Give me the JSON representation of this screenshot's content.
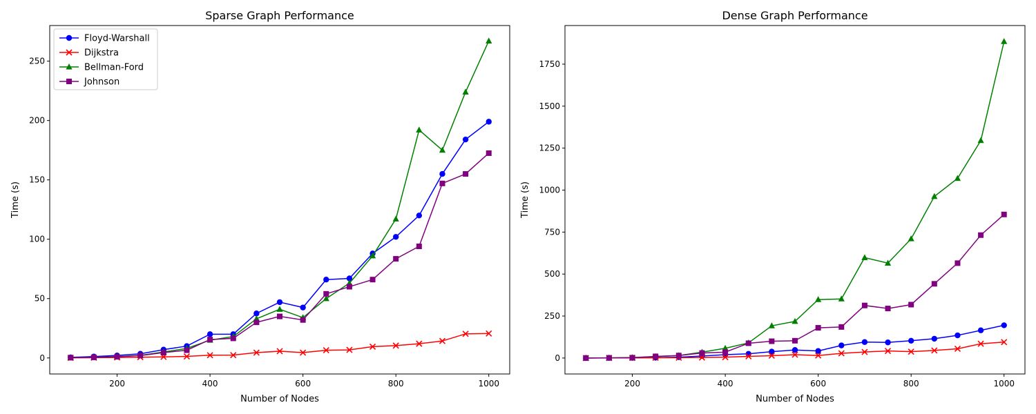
{
  "chart_data": [
    {
      "type": "line",
      "title": "Sparse Graph Performance",
      "xlabel": "Number of Nodes",
      "ylabel": "Time (s)",
      "xlim": [
        55,
        1045
      ],
      "ylim": [
        -13.5,
        280
      ],
      "xticks": [
        200,
        400,
        600,
        800,
        1000
      ],
      "yticks": [
        0,
        50,
        100,
        150,
        200,
        250
      ],
      "grid": false,
      "legend": "top-left",
      "x": [
        100,
        150,
        200,
        250,
        300,
        350,
        400,
        450,
        500,
        550,
        600,
        650,
        700,
        750,
        800,
        850,
        900,
        950,
        1000
      ],
      "series": [
        {
          "name": "Floyd-Warshall",
          "color": "#0000ff",
          "marker": "circle",
          "values": [
            0.5,
            1.2,
            2.1,
            3.5,
            7,
            10,
            20,
            20,
            37.5,
            47,
            42.5,
            66,
            67,
            88,
            102,
            120,
            155,
            184,
            199
          ]
        },
        {
          "name": "Dijkstra",
          "color": "#ff0000",
          "marker": "x",
          "values": [
            0.1,
            0.2,
            0.4,
            0.6,
            0.9,
            1.3,
            2.3,
            2.4,
            4.5,
            5.7,
            4.5,
            6.5,
            6.8,
            9.5,
            10.4,
            12,
            14.3,
            20.3,
            20.6
          ]
        },
        {
          "name": "Bellman-Ford",
          "color": "#008000",
          "marker": "triangle",
          "values": [
            0.3,
            0.6,
            1.2,
            2.2,
            5,
            8,
            15,
            18,
            33,
            41,
            34,
            50,
            63,
            86,
            117,
            192,
            175,
            224,
            267
          ]
        },
        {
          "name": "Johnson",
          "color": "#800080",
          "marker": "square",
          "values": [
            0.2,
            0.5,
            1,
            2,
            4.5,
            6.5,
            15.5,
            16.5,
            30,
            35,
            32,
            54,
            60,
            66,
            83.5,
            94,
            147,
            155,
            172.5
          ]
        }
      ]
    },
    {
      "type": "line",
      "title": "Dense Graph Performance",
      "xlabel": "Number of Nodes",
      "ylabel": "Time (s)",
      "xlim": [
        55,
        1045
      ],
      "ylim": [
        -95,
        1980
      ],
      "xticks": [
        200,
        400,
        600,
        800,
        1000
      ],
      "yticks": [
        0,
        250,
        500,
        750,
        1000,
        1250,
        1500,
        1750
      ],
      "grid": false,
      "legend": "none",
      "x": [
        100,
        150,
        200,
        250,
        300,
        350,
        400,
        450,
        500,
        550,
        600,
        650,
        700,
        750,
        800,
        850,
        900,
        950,
        1000
      ],
      "series": [
        {
          "name": "Floyd-Warshall",
          "color": "#0000ff",
          "marker": "circle",
          "values": [
            0,
            0.5,
            1,
            2,
            5,
            12,
            20,
            25,
            38,
            48,
            42,
            75,
            95,
            93,
            103,
            115,
            135,
            165,
            195
          ]
        },
        {
          "name": "Dijkstra",
          "color": "#ff0000",
          "marker": "x",
          "values": [
            0,
            0.5,
            1,
            1.5,
            2,
            3,
            5,
            10,
            14,
            20,
            15,
            28,
            36,
            42,
            38,
            45,
            55,
            85,
            95
          ]
        },
        {
          "name": "Bellman-Ford",
          "color": "#008000",
          "marker": "triangle",
          "values": [
            0,
            1,
            3,
            8,
            15,
            35,
            58,
            90,
            192,
            218,
            348,
            352,
            598,
            565,
            710,
            962,
            1070,
            1295,
            1885
          ]
        },
        {
          "name": "Johnson",
          "color": "#800080",
          "marker": "square",
          "values": [
            0,
            1,
            2,
            10,
            15,
            30,
            35,
            88,
            100,
            103,
            180,
            185,
            313,
            295,
            318,
            442,
            565,
            732,
            855
          ]
        }
      ]
    }
  ]
}
